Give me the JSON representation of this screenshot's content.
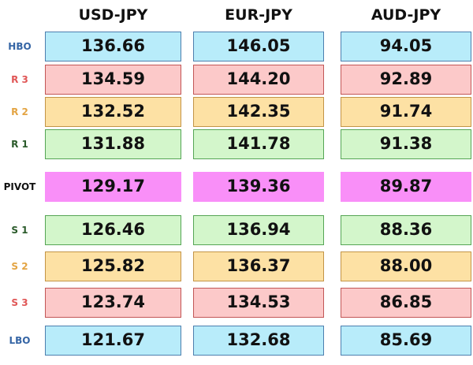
{
  "table": {
    "columns": [
      "USD-JPY",
      "EUR-JPY",
      "AUD-JPY"
    ],
    "rows": [
      {
        "label": "HBO",
        "cells": [
          "136.66",
          "146.05",
          "94.05"
        ]
      },
      {
        "label": "R 3",
        "cells": [
          "134.59",
          "144.20",
          "92.89"
        ]
      },
      {
        "label": "R 2",
        "cells": [
          "132.52",
          "142.35",
          "91.74"
        ]
      },
      {
        "label": "R 1",
        "cells": [
          "131.88",
          "141.78",
          "91.38"
        ]
      },
      {
        "label": "PIVOT",
        "cells": [
          "129.17",
          "139.36",
          "89.87"
        ]
      },
      {
        "label": "S 1",
        "cells": [
          "126.46",
          "136.94",
          "88.36"
        ]
      },
      {
        "label": "S 2",
        "cells": [
          "125.82",
          "136.37",
          "88.00"
        ]
      },
      {
        "label": "S 3",
        "cells": [
          "123.74",
          "134.53",
          "86.85"
        ]
      },
      {
        "label": "LBO",
        "cells": [
          "121.67",
          "132.68",
          "85.69"
        ]
      }
    ]
  }
}
